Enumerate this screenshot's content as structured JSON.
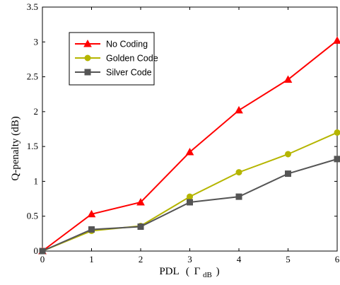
{
  "chart_data": {
    "type": "line",
    "title": "",
    "xlabel_prefix": "PDL",
    "xlabel_open": "(",
    "xlabel_gamma": "Γ",
    "xlabel_sub": "dB",
    "xlabel_close": ")",
    "ylabel": "Q-penalty (dB)",
    "xlim": [
      0,
      6
    ],
    "ylim": [
      0,
      3.5
    ],
    "x_ticks": [
      "0",
      "1",
      "2",
      "3",
      "4",
      "5",
      "6"
    ],
    "y_ticks": [
      "0",
      "0.5",
      "1",
      "1.5",
      "2",
      "2.5",
      "3",
      "3.5"
    ],
    "grid": false,
    "legend_position": "upper-left",
    "x": [
      0,
      1,
      2,
      3,
      4,
      5,
      6
    ],
    "series": [
      {
        "name": "No Coding",
        "color": "#ff0000",
        "marker": "triangle",
        "values": [
          0,
          0.53,
          0.7,
          1.42,
          2.02,
          2.46,
          3.02
        ]
      },
      {
        "name": "Golden Code",
        "color": "#b5b500",
        "marker": "circle",
        "values": [
          0,
          0.29,
          0.36,
          0.78,
          1.13,
          1.39,
          1.7
        ]
      },
      {
        "name": "Silver Code",
        "color": "#555555",
        "marker": "square",
        "values": [
          0,
          0.31,
          0.35,
          0.7,
          0.78,
          1.11,
          1.32
        ]
      }
    ]
  }
}
